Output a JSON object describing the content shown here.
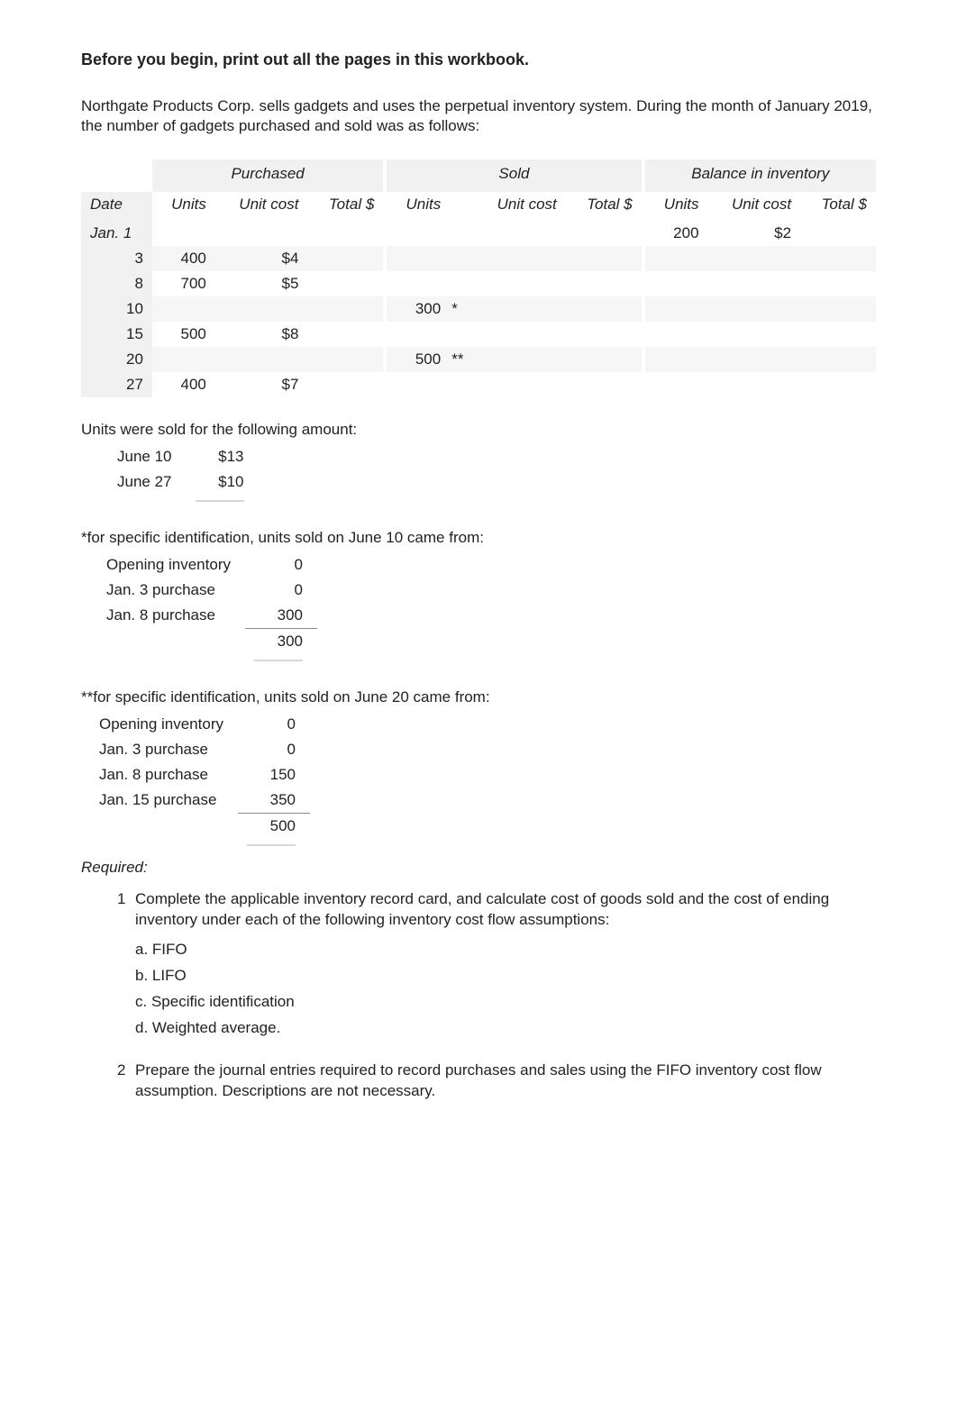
{
  "heading": "Before you begin, print out all the pages in this workbook.",
  "intro": "Northgate Products Corp. sells gadgets and uses the perpetual inventory system. During the month of January 2019, the number of gadgets purchased and sold was as follows:",
  "table": {
    "group_headers": [
      "Purchased",
      "Sold",
      "Balance in inventory"
    ],
    "sub_headers": [
      "Date",
      "Units",
      "Unit cost",
      "Total $",
      "Units",
      "Unit cost",
      "Total $",
      "Units",
      "Unit cost",
      "Total $"
    ],
    "rows": [
      {
        "date": "Jan. 1",
        "p_units": "",
        "p_cost": "",
        "p_total": "",
        "s_units": "",
        "s_note": "",
        "s_cost": "",
        "s_total": "",
        "b_units": "200",
        "b_cost": "$2",
        "b_total": ""
      },
      {
        "date": "3",
        "p_units": "400",
        "p_cost": "$4",
        "p_total": "",
        "s_units": "",
        "s_note": "",
        "s_cost": "",
        "s_total": "",
        "b_units": "",
        "b_cost": "",
        "b_total": ""
      },
      {
        "date": "8",
        "p_units": "700",
        "p_cost": "$5",
        "p_total": "",
        "s_units": "",
        "s_note": "",
        "s_cost": "",
        "s_total": "",
        "b_units": "",
        "b_cost": "",
        "b_total": ""
      },
      {
        "date": "10",
        "p_units": "",
        "p_cost": "",
        "p_total": "",
        "s_units": "300",
        "s_note": "*",
        "s_cost": "",
        "s_total": "",
        "b_units": "",
        "b_cost": "",
        "b_total": ""
      },
      {
        "date": "15",
        "p_units": "500",
        "p_cost": "$8",
        "p_total": "",
        "s_units": "",
        "s_note": "",
        "s_cost": "",
        "s_total": "",
        "b_units": "",
        "b_cost": "",
        "b_total": ""
      },
      {
        "date": "20",
        "p_units": "",
        "p_cost": "",
        "p_total": "",
        "s_units": "500",
        "s_note": "**",
        "s_cost": "",
        "s_total": "",
        "b_units": "",
        "b_cost": "",
        "b_total": ""
      },
      {
        "date": "27",
        "p_units": "400",
        "p_cost": "$7",
        "p_total": "",
        "s_units": "",
        "s_note": "",
        "s_cost": "",
        "s_total": "",
        "b_units": "",
        "b_cost": "",
        "b_total": ""
      }
    ]
  },
  "sold_amount_label": "Units were sold for the following amount:",
  "sold_amount": [
    {
      "label": "June 10",
      "value": "$13"
    },
    {
      "label": "June 27",
      "value": "$10"
    }
  ],
  "spec1_label": "*for specific identification, units sold on June 10 came from:",
  "spec1": [
    {
      "label": "Opening inventory",
      "value": "0"
    },
    {
      "label": "Jan. 3 purchase",
      "value": "0"
    },
    {
      "label": "Jan. 8 purchase",
      "value": "300"
    }
  ],
  "spec1_total": "300",
  "spec2_label": "**for specific identification, units sold on June 20 came from:",
  "spec2": [
    {
      "label": "Opening inventory",
      "value": "0"
    },
    {
      "label": "Jan. 3 purchase",
      "value": "0"
    },
    {
      "label": "Jan. 8 purchase",
      "value": "150"
    },
    {
      "label": "Jan. 15 purchase",
      "value": "350"
    }
  ],
  "spec2_total": "500",
  "required_label": "Required:",
  "req1_num": "1",
  "req1_text": "Complete the applicable inventory record card, and calculate cost of goods sold and the cost of ending inventory under each of the following inventory cost flow assumptions:",
  "req1_sub": [
    "a. FIFO",
    "b. LIFO",
    "c. Specific identification",
    "d. Weighted average."
  ],
  "req2_num": "2",
  "req2_text": "Prepare the journal entries required to record purchases and sales using the FIFO inventory cost flow assumption. Descriptions are not necessary.",
  "colors": {
    "bg": "#ffffff",
    "text": "#222222",
    "zebra": "#f1f1f1",
    "stripe": "#f6f6f6",
    "rule": "#d8d8d8"
  }
}
